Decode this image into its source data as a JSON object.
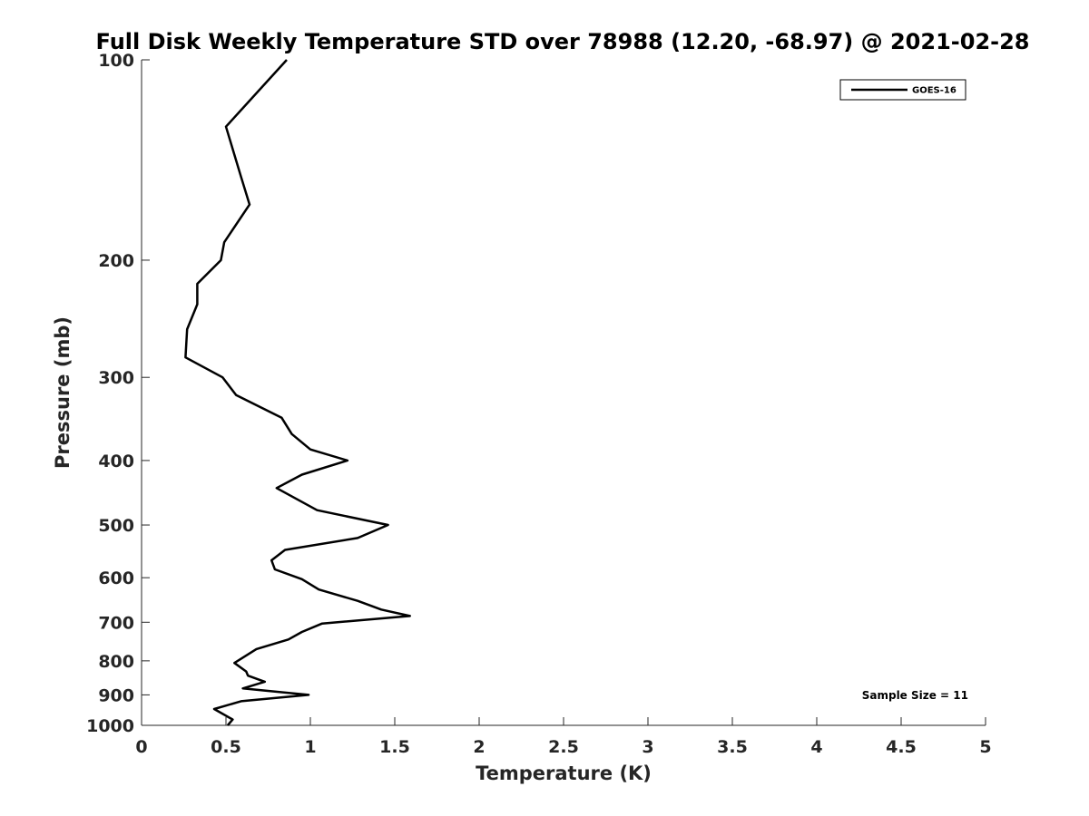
{
  "chart_data": {
    "type": "line",
    "title": "Full Disk Weekly Temperature STD over 78988 (12.20, -68.97) @ 2021-02-28",
    "xlabel": "Temperature (K)",
    "ylabel": "Pressure (mb)",
    "xlim": [
      0,
      5
    ],
    "ylim": [
      100,
      1000
    ],
    "y_scale": "log",
    "y_reversed": true,
    "x_ticks": [
      0,
      0.5,
      1,
      1.5,
      2,
      2.5,
      3,
      3.5,
      4,
      4.5,
      5
    ],
    "x_tick_labels": [
      "0",
      "0.5",
      "1",
      "1.5",
      "2",
      "2.5",
      "3",
      "3.5",
      "4",
      "4.5",
      "5"
    ],
    "y_ticks": [
      100,
      200,
      300,
      400,
      500,
      600,
      700,
      800,
      900,
      1000
    ],
    "y_tick_labels": [
      "100",
      "200",
      "300",
      "400",
      "500",
      "600",
      "700",
      "800",
      "900",
      "1000"
    ],
    "grid": false,
    "legend": {
      "placement": "top-right",
      "entries": [
        "GOES-16"
      ]
    },
    "annotation": "Sample Size = 11",
    "series": [
      {
        "name": "GOES-16",
        "color": "#000000",
        "points": [
          [
            0.86,
            100
          ],
          [
            0.5,
            126
          ],
          [
            0.59,
            150
          ],
          [
            0.64,
            165
          ],
          [
            0.49,
            188
          ],
          [
            0.47,
            200
          ],
          [
            0.33,
            217
          ],
          [
            0.33,
            233
          ],
          [
            0.27,
            254
          ],
          [
            0.26,
            280
          ],
          [
            0.48,
            300
          ],
          [
            0.56,
            319
          ],
          [
            0.83,
            345
          ],
          [
            0.89,
            365
          ],
          [
            1.0,
            385
          ],
          [
            1.22,
            400
          ],
          [
            0.95,
            420
          ],
          [
            0.8,
            440
          ],
          [
            1.04,
            475
          ],
          [
            1.46,
            500
          ],
          [
            1.28,
            523
          ],
          [
            0.85,
            545
          ],
          [
            0.77,
            565
          ],
          [
            0.79,
            583
          ],
          [
            0.95,
            603
          ],
          [
            1.05,
            625
          ],
          [
            1.28,
            650
          ],
          [
            1.42,
            670
          ],
          [
            1.59,
            685
          ],
          [
            1.07,
            703
          ],
          [
            0.95,
            724
          ],
          [
            0.87,
            743
          ],
          [
            0.68,
            768
          ],
          [
            0.55,
            806
          ],
          [
            0.62,
            830
          ],
          [
            0.63,
            842
          ],
          [
            0.73,
            860
          ],
          [
            0.6,
            880
          ],
          [
            0.99,
            900
          ],
          [
            0.59,
            920
          ],
          [
            0.43,
            945
          ],
          [
            0.54,
            980
          ],
          [
            0.51,
            1000
          ]
        ]
      }
    ]
  }
}
